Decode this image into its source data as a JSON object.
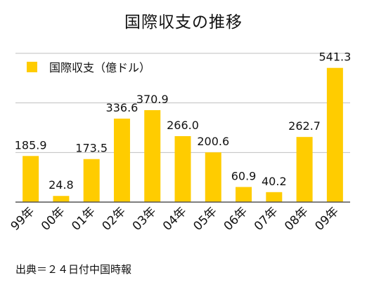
{
  "chart_data": {
    "type": "bar",
    "title": "国際収支の推移",
    "categories": [
      "99年",
      "00年",
      "01年",
      "02年",
      "03年",
      "04年",
      "05年",
      "06年",
      "07年",
      "08年",
      "09年"
    ],
    "series": [
      {
        "name": "国際収支（億ドル）",
        "values": [
          185.9,
          24.8,
          173.5,
          336.6,
          370.9,
          266.0,
          200.6,
          60.9,
          40.2,
          262.7,
          541.3
        ],
        "value_labels": [
          "185.9",
          "24.8",
          "173.5",
          "336.6",
          "370.9",
          "266.0",
          "200.6",
          "60.9",
          "40.2",
          "262.7",
          "541.3"
        ]
      }
    ],
    "ylim": [
      0,
      600
    ],
    "grid": true,
    "legend": "top-left",
    "bar_color": "#FFCC00",
    "grid_color": "#bfbfbf",
    "axis_color": "#555555"
  },
  "source": "出典＝２４日付中国時報"
}
